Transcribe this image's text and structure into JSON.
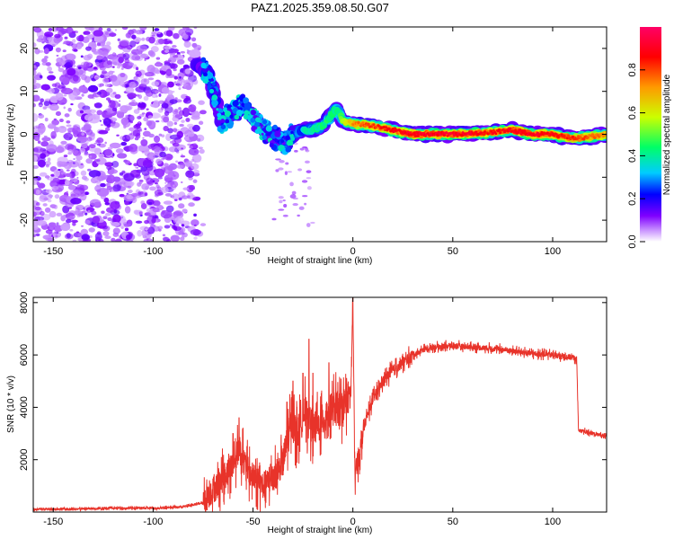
{
  "title": "PAZ1.2025.359.08.50.G07",
  "chart_data": [
    {
      "type": "heatmap",
      "xlabel": "Height of straight line (km)",
      "ylabel": "Frequency (Hz)",
      "xlim": [
        -160,
        127
      ],
      "ylim": [
        -25,
        25
      ],
      "xticks": [
        -150,
        -100,
        -50,
        0,
        50,
        100
      ],
      "yticks": [
        -20,
        -10,
        0,
        10,
        20
      ],
      "noise_region_x": [
        -160,
        -78
      ],
      "ridge": {
        "x": [
          -78,
          -72,
          -66,
          -60,
          -55,
          -50,
          -46,
          -42,
          -38,
          -34,
          -30,
          -25,
          -20,
          -15,
          -10,
          -8,
          -5,
          0,
          10,
          20,
          30,
          50,
          70,
          80,
          90,
          100,
          110,
          120,
          127
        ],
        "y": [
          16,
          14,
          3,
          5,
          7,
          4,
          2,
          0,
          -1,
          -2,
          0,
          1,
          1,
          2,
          5,
          6,
          3,
          2.5,
          2,
          1,
          0,
          0,
          0.5,
          1,
          0,
          0,
          -1,
          -0.5,
          0
        ],
        "amplitude": [
          0.2,
          0.3,
          0.25,
          0.3,
          0.35,
          0.3,
          0.25,
          0.3,
          0.25,
          0.3,
          0.35,
          0.4,
          0.45,
          0.5,
          0.55,
          0.5,
          0.6,
          0.75,
          0.85,
          0.9,
          0.95,
          0.97,
          0.9,
          0.93,
          0.95,
          0.9,
          0.85,
          0.8,
          0.75
        ]
      },
      "colorbar": {
        "label": "Normalized spectral amplitude",
        "range": [
          0,
          1
        ],
        "ticks": [
          "0.0",
          "0.2",
          "0.4",
          "0.6",
          "0.8"
        ],
        "colors": [
          "#ffffff",
          "#cc99ff",
          "#7f00ff",
          "#0000ff",
          "#00ccff",
          "#00ff66",
          "#ccff00",
          "#ff9900",
          "#ff0000",
          "#ff0066"
        ]
      }
    },
    {
      "type": "line",
      "xlabel": "Height of straight line (km)",
      "ylabel": "SNR (10 * v/v)",
      "xlim": [
        -160,
        127
      ],
      "ylim": [
        0,
        8200
      ],
      "xticks": [
        -150,
        -100,
        -50,
        0,
        50,
        100
      ],
      "yticks": [
        2000,
        4000,
        6000,
        8000
      ],
      "color": "#e8332a",
      "x": [
        -160,
        -140,
        -120,
        -100,
        -85,
        -75,
        -72,
        -68,
        -65,
        -60,
        -57,
        -55,
        -52,
        -48,
        -45,
        -40,
        -35,
        -32,
        -30,
        -28,
        -26,
        -24,
        -22,
        -20,
        -18,
        -15,
        -12,
        -9,
        -6,
        -4,
        -2,
        -1,
        0,
        1,
        2,
        4,
        6,
        10,
        15,
        20,
        25,
        30,
        35,
        40,
        50,
        60,
        70,
        80,
        90,
        100,
        105,
        110,
        112,
        113,
        115,
        120,
        127
      ],
      "y": [
        100,
        120,
        150,
        150,
        200,
        350,
        700,
        1000,
        1300,
        1800,
        2400,
        2000,
        1500,
        1200,
        1000,
        1300,
        1900,
        3000,
        3500,
        2900,
        3400,
        3800,
        3500,
        3200,
        3200,
        3500,
        3800,
        4000,
        3900,
        4200,
        4400,
        4600,
        8100,
        1400,
        1800,
        2500,
        3400,
        4300,
        5000,
        5400,
        5700,
        6000,
        6200,
        6300,
        6350,
        6300,
        6250,
        6150,
        6050,
        6000,
        5950,
        5900,
        5850,
        3100,
        3100,
        3000,
        2900
      ],
      "spikes_x": [
        -60,
        -57,
        -55,
        -53,
        -33,
        -30,
        -28,
        -25,
        -22,
        -20,
        -18,
        -12,
        -3,
        0
      ],
      "spikes_y": [
        3000,
        3600,
        3200,
        2500,
        4200,
        5000,
        4000,
        5300,
        6600,
        5300,
        4200,
        5700,
        4900,
        8200
      ]
    }
  ]
}
